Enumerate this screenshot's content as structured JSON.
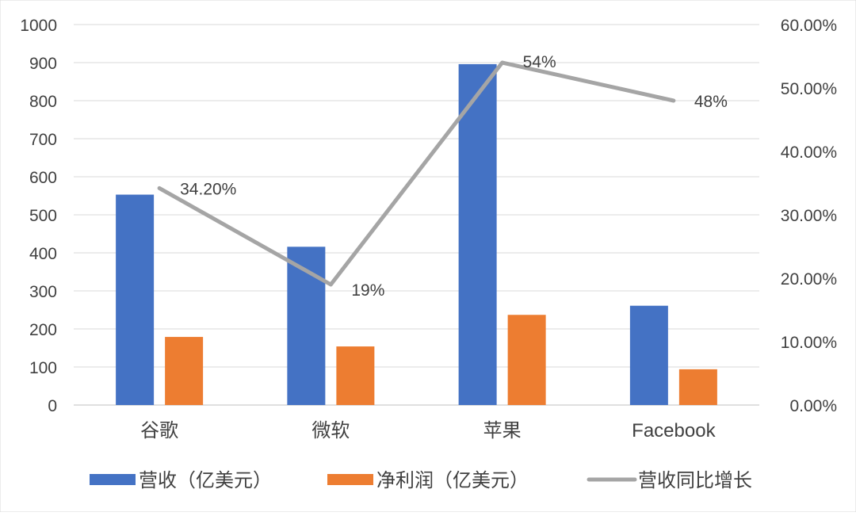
{
  "chart_data": {
    "type": "bar",
    "categories": [
      "谷歌",
      "微软",
      "苹果",
      "Facebook"
    ],
    "series": [
      {
        "name": "营收（亿美元）",
        "type": "bar",
        "axis": "left",
        "color": "#4472C4",
        "values": [
          553,
          416,
          896,
          261
        ]
      },
      {
        "name": "净利润（亿美元）",
        "type": "bar",
        "axis": "left",
        "color": "#ED7D31",
        "values": [
          179,
          154,
          237,
          94
        ]
      },
      {
        "name": "营收同比增长",
        "type": "line",
        "axis": "right",
        "color": "#A5A5A5",
        "values": [
          0.342,
          0.19,
          0.54,
          0.48
        ],
        "data_labels": [
          "34.20%",
          "19%",
          "54%",
          "48%"
        ]
      }
    ],
    "y_left": {
      "ylim": [
        0,
        1000
      ],
      "ticks": [
        "0",
        "100",
        "200",
        "300",
        "400",
        "500",
        "600",
        "700",
        "800",
        "900",
        "1000"
      ]
    },
    "y_right": {
      "ylim": [
        0,
        0.6
      ],
      "ticks": [
        "0.00%",
        "10.00%",
        "20.00%",
        "30.00%",
        "40.00%",
        "50.00%",
        "60.00%"
      ]
    },
    "grid": true,
    "legend": "bottom"
  }
}
